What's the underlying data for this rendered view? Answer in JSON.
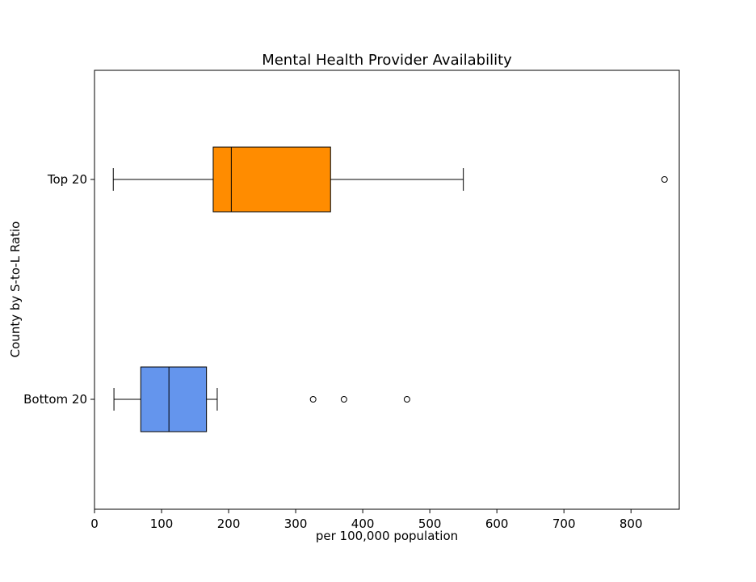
{
  "chart_data": {
    "type": "boxplot",
    "orientation": "horizontal",
    "title": "Mental Health Provider Availability",
    "xlabel": "per 100,000 population",
    "ylabel": "County by S-to-L Ratio",
    "xlim": [
      0,
      872
    ],
    "xticks": [
      0,
      100,
      200,
      300,
      400,
      500,
      600,
      700,
      800
    ],
    "grid": false,
    "categories": [
      "Bottom 20",
      "Top 20"
    ],
    "series": [
      {
        "category": "Bottom 20",
        "color": "#6495ED",
        "whisker_low": 29,
        "q1": 69,
        "median": 111,
        "q3": 167,
        "whisker_high": 183,
        "outliers": [
          326,
          372,
          466
        ]
      },
      {
        "category": "Top 20",
        "color": "#FF8C00",
        "whisker_low": 28,
        "q1": 177,
        "median": 204,
        "q3": 352,
        "whisker_high": 550,
        "outliers": [
          850
        ]
      }
    ]
  }
}
